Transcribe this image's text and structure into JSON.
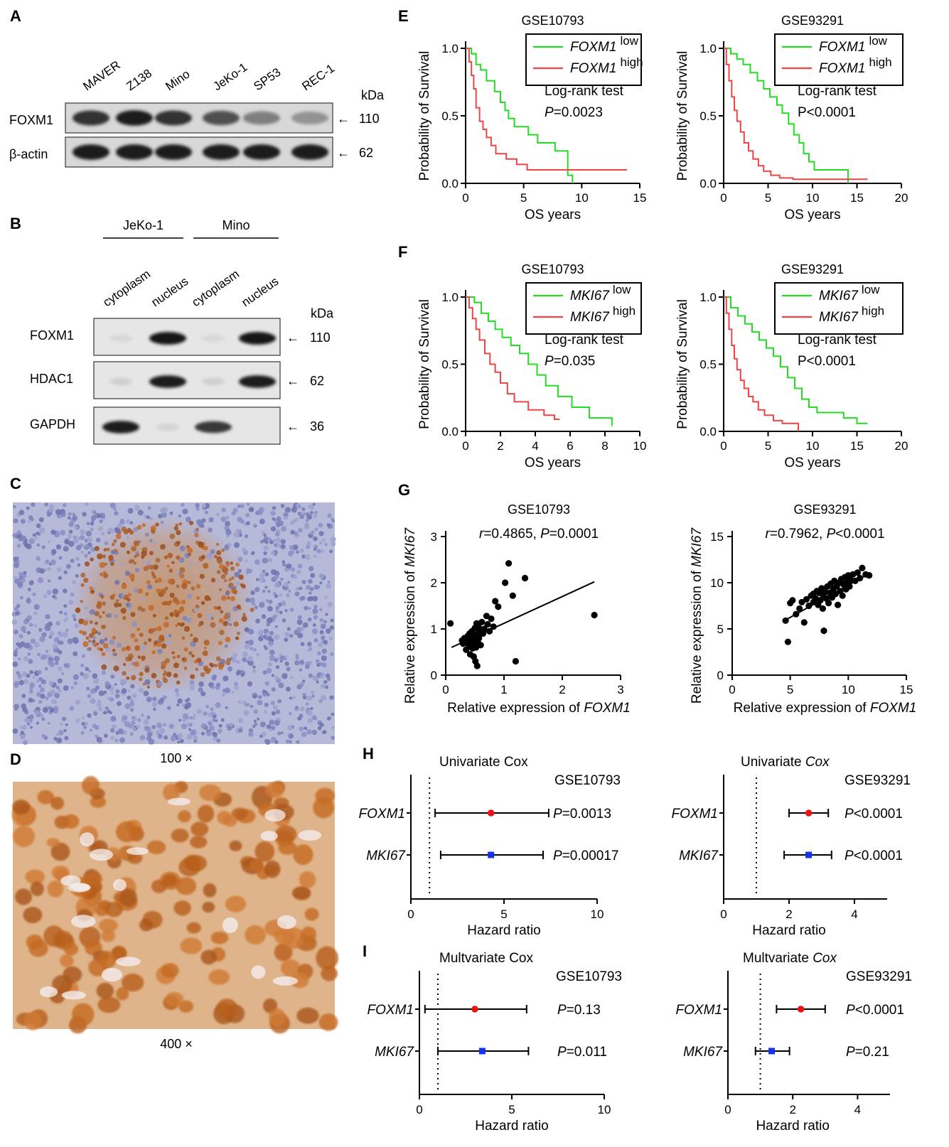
{
  "panels": {
    "A": {
      "letter": "A",
      "lanes": [
        "MAVER",
        "Z138",
        "Mino",
        "JeKo-1",
        "SP53",
        "REC-1"
      ],
      "rows": [
        {
          "label": "FOXM1",
          "kda": "110",
          "intensity": [
            0.85,
            0.95,
            0.85,
            0.7,
            0.45,
            0.35
          ]
        },
        {
          "label": "β-actin",
          "kda": "62",
          "intensity": [
            0.95,
            0.95,
            0.95,
            0.95,
            0.95,
            0.95
          ]
        }
      ],
      "kda_label": "kDa",
      "arrow": "←"
    },
    "B": {
      "letter": "B",
      "groups": [
        "JeKo-1",
        "Mino"
      ],
      "lanes": [
        "cytoplasm",
        "nucleus",
        "cytoplasm",
        "nucleus"
      ],
      "kda_label": "kDa",
      "arrow": "←",
      "rows": [
        {
          "label": "FOXM1",
          "kda": "110",
          "intensity": [
            0.05,
            0.98,
            0.05,
            0.98
          ]
        },
        {
          "label": "HDAC1",
          "kda": "62",
          "intensity": [
            0.08,
            0.95,
            0.08,
            0.95
          ]
        },
        {
          "label": "GAPDH",
          "kda": "36",
          "intensity": [
            0.95,
            0.06,
            0.8,
            0.0
          ]
        }
      ]
    },
    "C": {
      "letter": "C",
      "magnification": "100 ×"
    },
    "D": {
      "letter": "D",
      "magnification": "400 ×"
    },
    "E": {
      "letter": "E"
    },
    "F": {
      "letter": "F"
    },
    "G": {
      "letter": "G"
    },
    "H": {
      "letter": "H"
    },
    "I": {
      "letter": "I"
    }
  },
  "colors": {
    "low": "#22dd22",
    "high": "#ee4444",
    "point_red": "#ee1111",
    "point_blue": "#1133ee",
    "ihc_c_bg": "#b7b9d8",
    "ihc_d_bg": "#dfb48a"
  },
  "chart_data": [
    {
      "id": "E-left",
      "type": "line",
      "title": "GSE10793",
      "xlabel": "OS years",
      "ylabel": "Probability of Survival",
      "xlim": [
        0,
        15
      ],
      "ylim": [
        0,
        1.0
      ],
      "xticks": [
        "0",
        "5",
        "10",
        "15"
      ],
      "yticks": [
        "0.0",
        "0.5",
        "1.0"
      ],
      "legend": {
        "position": "top-right",
        "entries": [
          {
            "gene": "FOXM1",
            "sup": "low",
            "series": "low"
          },
          {
            "gene": "FOXM1",
            "sup": "high",
            "series": "high"
          }
        ]
      },
      "annotation": [
        "Log-rank test",
        "P=0.0023"
      ],
      "series": [
        {
          "key": "low",
          "x": [
            0,
            0.5,
            0.9,
            1.3,
            1.8,
            2.5,
            3.0,
            3.4,
            3.7,
            4.2,
            5.4,
            6.2,
            7.7,
            8.8,
            9.2
          ],
          "y": [
            1.0,
            0.96,
            0.88,
            0.84,
            0.76,
            0.68,
            0.6,
            0.54,
            0.48,
            0.42,
            0.36,
            0.3,
            0.24,
            0.06,
            0.0
          ]
        },
        {
          "key": "high",
          "x": [
            0,
            0.3,
            0.5,
            0.7,
            0.9,
            1.2,
            1.5,
            1.8,
            2.2,
            2.6,
            3.5,
            4.4,
            5.3,
            13.9
          ],
          "y": [
            1.0,
            0.9,
            0.8,
            0.7,
            0.56,
            0.46,
            0.4,
            0.34,
            0.28,
            0.22,
            0.18,
            0.14,
            0.1,
            0.1
          ]
        }
      ]
    },
    {
      "id": "E-right",
      "type": "line",
      "title": "GSE93291",
      "xlabel": "OS years",
      "ylabel": "Probability of Survival",
      "xlim": [
        0,
        20
      ],
      "ylim": [
        0,
        1.0
      ],
      "xticks": [
        "0",
        "5",
        "10",
        "15",
        "20"
      ],
      "yticks": [
        "0.0",
        "0.5",
        "1.0"
      ],
      "legend": {
        "position": "top-right",
        "entries": [
          {
            "gene": "FOXM1",
            "sup": "low",
            "series": "low"
          },
          {
            "gene": "FOXM1",
            "sup": "high",
            "series": "high"
          }
        ]
      },
      "annotation": [
        "Log-rank test",
        "P<0.0001"
      ],
      "series": [
        {
          "key": "low",
          "x": [
            0,
            0.8,
            1.5,
            2.2,
            3.0,
            3.8,
            4.5,
            5.2,
            6.0,
            6.6,
            7.3,
            7.9,
            8.5,
            9.0,
            9.6,
            10.2,
            12.0,
            14.0
          ],
          "y": [
            1.0,
            0.96,
            0.92,
            0.88,
            0.82,
            0.76,
            0.7,
            0.64,
            0.58,
            0.52,
            0.44,
            0.36,
            0.3,
            0.22,
            0.16,
            0.1,
            0.1,
            0.0
          ]
        },
        {
          "key": "high",
          "x": [
            0,
            0.3,
            0.6,
            0.9,
            1.2,
            1.5,
            1.9,
            2.3,
            2.8,
            3.3,
            3.9,
            4.5,
            5.3,
            6.3,
            7.8,
            16.2
          ],
          "y": [
            1.0,
            0.88,
            0.76,
            0.64,
            0.54,
            0.46,
            0.38,
            0.3,
            0.24,
            0.18,
            0.13,
            0.09,
            0.06,
            0.04,
            0.03,
            0.03
          ]
        }
      ]
    },
    {
      "id": "F-left",
      "type": "line",
      "title": "GSE10793",
      "xlabel": "OS years",
      "ylabel": "Probability of Survival",
      "xlim": [
        0,
        10
      ],
      "ylim": [
        0,
        1.0
      ],
      "xticks": [
        "0",
        "2",
        "4",
        "6",
        "8",
        "10"
      ],
      "yticks": [
        "0.0",
        "0.5",
        "1.0"
      ],
      "legend": {
        "position": "top-right",
        "entries": [
          {
            "gene": "MKI67",
            "sup": "low",
            "series": "low"
          },
          {
            "gene": "MKI67",
            "sup": "high",
            "series": "high"
          }
        ]
      },
      "annotation": [
        "Log-rank test",
        "P=0.035"
      ],
      "series": [
        {
          "key": "low",
          "x": [
            0,
            0.5,
            0.9,
            1.3,
            1.7,
            2.1,
            2.6,
            3.1,
            3.6,
            4.1,
            4.6,
            5.3,
            6.1,
            7.1,
            8.4
          ],
          "y": [
            1.0,
            0.96,
            0.88,
            0.82,
            0.76,
            0.7,
            0.64,
            0.58,
            0.5,
            0.42,
            0.34,
            0.26,
            0.18,
            0.1,
            0.04
          ]
        },
        {
          "key": "high",
          "x": [
            0,
            0.2,
            0.4,
            0.6,
            0.8,
            1.1,
            1.4,
            1.7,
            2.0,
            2.4,
            2.8,
            3.6,
            4.5,
            5.1,
            5.4
          ],
          "y": [
            1.0,
            0.92,
            0.84,
            0.76,
            0.68,
            0.58,
            0.5,
            0.44,
            0.36,
            0.28,
            0.22,
            0.16,
            0.12,
            0.09,
            0.09
          ]
        }
      ]
    },
    {
      "id": "F-right",
      "type": "line",
      "title": "GSE93291",
      "xlabel": "OS years",
      "ylabel": "Probability of Survival",
      "xlim": [
        0,
        20
      ],
      "ylim": [
        0,
        1.0
      ],
      "xticks": [
        "0",
        "5",
        "10",
        "15",
        "20"
      ],
      "yticks": [
        "0.0",
        "0.5",
        "1.0"
      ],
      "legend": {
        "position": "top-right",
        "entries": [
          {
            "gene": "MKI67",
            "sup": "low",
            "series": "low"
          },
          {
            "gene": "MKI67",
            "sup": "high",
            "series": "high"
          }
        ]
      },
      "annotation": [
        "Log-rank test",
        "P<0.0001"
      ],
      "series": [
        {
          "key": "low",
          "x": [
            0,
            0.8,
            1.6,
            2.4,
            3.2,
            4.0,
            4.8,
            5.6,
            6.4,
            7.2,
            8.0,
            8.8,
            9.6,
            10.5,
            12.0,
            13.5,
            15.0,
            16.2
          ],
          "y": [
            1.0,
            0.92,
            0.86,
            0.8,
            0.74,
            0.68,
            0.62,
            0.56,
            0.48,
            0.4,
            0.32,
            0.24,
            0.18,
            0.14,
            0.14,
            0.1,
            0.06,
            0.06
          ]
        },
        {
          "key": "high",
          "x": [
            0,
            0.3,
            0.6,
            0.9,
            1.2,
            1.5,
            1.9,
            2.3,
            2.8,
            3.3,
            3.9,
            4.6,
            5.6,
            6.6,
            8.4
          ],
          "y": [
            1.0,
            0.88,
            0.76,
            0.64,
            0.54,
            0.46,
            0.38,
            0.32,
            0.26,
            0.22,
            0.16,
            0.12,
            0.08,
            0.06,
            0.0
          ]
        }
      ]
    },
    {
      "id": "G-left",
      "type": "scatter",
      "title": "GSE10793",
      "stat": {
        "r": "0.4865",
        "p": "P=0.0001"
      },
      "xlabel": {
        "text": "Relative expression of ",
        "gene": "FOXM1"
      },
      "ylabel": {
        "text": "Relative expression of ",
        "gene": "MKI67"
      },
      "xlim": [
        0,
        3
      ],
      "ylim": [
        0,
        3
      ],
      "xticks": [
        "0",
        "1",
        "2",
        "3"
      ],
      "yticks": [
        "0",
        "1",
        "2",
        "3"
      ],
      "fit": {
        "x": [
          0.1,
          2.55
        ],
        "y": [
          0.6,
          2.02
        ]
      },
      "points": [
        [
          0.08,
          1.12
        ],
        [
          0.28,
          0.75
        ],
        [
          0.3,
          0.68
        ],
        [
          0.32,
          0.8
        ],
        [
          0.35,
          0.55
        ],
        [
          0.36,
          0.72
        ],
        [
          0.38,
          0.85
        ],
        [
          0.4,
          0.62
        ],
        [
          0.41,
          0.9
        ],
        [
          0.42,
          0.45
        ],
        [
          0.43,
          0.78
        ],
        [
          0.44,
          0.7
        ],
        [
          0.45,
          0.95
        ],
        [
          0.46,
          0.58
        ],
        [
          0.47,
          0.82
        ],
        [
          0.48,
          0.4
        ],
        [
          0.49,
          0.68
        ],
        [
          0.5,
          1.02
        ],
        [
          0.5,
          0.75
        ],
        [
          0.51,
          0.3
        ],
        [
          0.52,
          0.88
        ],
        [
          0.52,
          0.6
        ],
        [
          0.53,
          1.12
        ],
        [
          0.54,
          0.2
        ],
        [
          0.55,
          0.72
        ],
        [
          0.56,
          1.05
        ],
        [
          0.57,
          0.8
        ],
        [
          0.58,
          0.95
        ],
        [
          0.6,
          0.65
        ],
        [
          0.62,
          1.15
        ],
        [
          0.64,
          0.9
        ],
        [
          0.66,
          1.0
        ],
        [
          0.7,
          1.28
        ],
        [
          0.72,
          1.1
        ],
        [
          0.75,
          0.95
        ],
        [
          0.78,
          1.22
        ],
        [
          0.82,
          1.05
        ],
        [
          0.85,
          1.6
        ],
        [
          0.9,
          1.48
        ],
        [
          1.02,
          2.0
        ],
        [
          1.08,
          2.42
        ],
        [
          1.15,
          1.72
        ],
        [
          1.2,
          0.3
        ],
        [
          1.36,
          2.1
        ],
        [
          2.55,
          1.3
        ]
      ]
    },
    {
      "id": "G-right",
      "type": "scatter",
      "title": "GSE93291",
      "stat": {
        "r": "0.7962",
        "p": "P<0.0001"
      },
      "xlabel": {
        "text": "Relative expression of ",
        "gene": "FOXM1"
      },
      "ylabel": {
        "text": "Relative expression of ",
        "gene": "MKI67"
      },
      "xlim": [
        0,
        15
      ],
      "ylim": [
        0,
        15
      ],
      "xticks": [
        "0",
        "5",
        "10",
        "15"
      ],
      "yticks": [
        "0",
        "5",
        "10",
        "15"
      ],
      "fit": {
        "x": [
          4.5,
          11.8
        ],
        "y": [
          5.9,
          11.0
        ]
      },
      "points": [
        [
          4.6,
          5.9
        ],
        [
          4.8,
          3.6
        ],
        [
          5.0,
          7.8
        ],
        [
          5.2,
          8.1
        ],
        [
          5.5,
          6.6
        ],
        [
          5.8,
          7.2
        ],
        [
          6.0,
          7.9
        ],
        [
          6.2,
          5.7
        ],
        [
          6.4,
          8.2
        ],
        [
          6.6,
          7.5
        ],
        [
          6.8,
          8.6
        ],
        [
          7.0,
          7.9
        ],
        [
          7.0,
          8.8
        ],
        [
          7.2,
          8.3
        ],
        [
          7.3,
          9.1
        ],
        [
          7.4,
          7.6
        ],
        [
          7.5,
          8.9
        ],
        [
          7.6,
          8.1
        ],
        [
          7.7,
          9.4
        ],
        [
          7.8,
          7.2
        ],
        [
          7.8,
          8.7
        ],
        [
          7.9,
          4.8
        ],
        [
          8.0,
          9.0
        ],
        [
          8.1,
          8.3
        ],
        [
          8.2,
          9.6
        ],
        [
          8.3,
          7.8
        ],
        [
          8.4,
          8.9
        ],
        [
          8.5,
          9.9
        ],
        [
          8.6,
          8.4
        ],
        [
          8.7,
          9.3
        ],
        [
          8.8,
          10.2
        ],
        [
          8.9,
          8.8
        ],
        [
          9.0,
          9.6
        ],
        [
          9.1,
          7.6
        ],
        [
          9.2,
          10.0
        ],
        [
          9.3,
          9.1
        ],
        [
          9.4,
          10.4
        ],
        [
          9.5,
          8.6
        ],
        [
          9.6,
          9.8
        ],
        [
          9.7,
          10.6
        ],
        [
          9.8,
          9.3
        ],
        [
          9.9,
          10.1
        ],
        [
          10.0,
          10.8
        ],
        [
          10.1,
          9.6
        ],
        [
          10.2,
          10.3
        ],
        [
          10.4,
          10.9
        ],
        [
          10.6,
          10.2
        ],
        [
          10.8,
          11.1
        ],
        [
          11.0,
          10.5
        ],
        [
          11.2,
          11.6
        ],
        [
          11.5,
          10.9
        ],
        [
          11.8,
          10.8
        ]
      ]
    },
    {
      "id": "H-left",
      "type": "forest",
      "title": "Univariate Cox",
      "title_italic": "",
      "dataset": "GSE10793",
      "xlabel": "Hazard ratio",
      "xlim": [
        0,
        10
      ],
      "xticks": [
        "0",
        "5",
        "10"
      ],
      "ref": 1,
      "rows": [
        {
          "gene": "FOXM1",
          "hr": 4.3,
          "lo": 1.3,
          "hi": 7.4,
          "p": "=0.0013",
          "color": "red",
          "marker": "circle"
        },
        {
          "gene": "MKI67",
          "hr": 4.3,
          "lo": 1.6,
          "hi": 7.1,
          "p": "=0.00017",
          "color": "blue",
          "marker": "square"
        }
      ]
    },
    {
      "id": "H-right",
      "type": "forest",
      "title": "Univariate ",
      "title_italic": "Cox",
      "dataset": "GSE93291",
      "xlabel": "Hazard ratio",
      "xlim": [
        0,
        5
      ],
      "xticks": [
        "0",
        "2",
        "4"
      ],
      "ref": 1,
      "rows": [
        {
          "gene": "FOXM1",
          "hr": 2.6,
          "lo": 2.0,
          "hi": 3.2,
          "p": "<0.0001",
          "color": "red",
          "marker": "circle"
        },
        {
          "gene": "MKI67",
          "hr": 2.6,
          "lo": 1.85,
          "hi": 3.3,
          "p": "<0.0001",
          "color": "blue",
          "marker": "square"
        }
      ]
    },
    {
      "id": "I-left",
      "type": "forest",
      "title": "Multvariate Cox",
      "title_italic": "",
      "dataset": "GSE10793",
      "xlabel": "Hazard ratio",
      "xlim": [
        0,
        10
      ],
      "xticks": [
        "0",
        "5",
        "10"
      ],
      "ref": 1,
      "rows": [
        {
          "gene": "FOXM1",
          "hr": 3.0,
          "lo": 0.3,
          "hi": 5.8,
          "p": "=0.13",
          "color": "red",
          "marker": "circle"
        },
        {
          "gene": "MKI67",
          "hr": 3.4,
          "lo": 1.0,
          "hi": 5.9,
          "p": "=0.011",
          "color": "blue",
          "marker": "square"
        }
      ]
    },
    {
      "id": "I-right",
      "type": "forest",
      "title": "Multvariate ",
      "title_italic": "Cox",
      "dataset": "GSE93291",
      "xlabel": "Hazard ratio",
      "xlim": [
        0,
        5
      ],
      "xticks": [
        "0",
        "2",
        "4"
      ],
      "ref": 1,
      "rows": [
        {
          "gene": "FOXM1",
          "hr": 2.25,
          "lo": 1.5,
          "hi": 3.0,
          "p": "<0.0001",
          "color": "red",
          "marker": "circle"
        },
        {
          "gene": "MKI67",
          "hr": 1.35,
          "lo": 0.85,
          "hi": 1.9,
          "p": "=0.21",
          "color": "blue",
          "marker": "square"
        }
      ]
    }
  ]
}
